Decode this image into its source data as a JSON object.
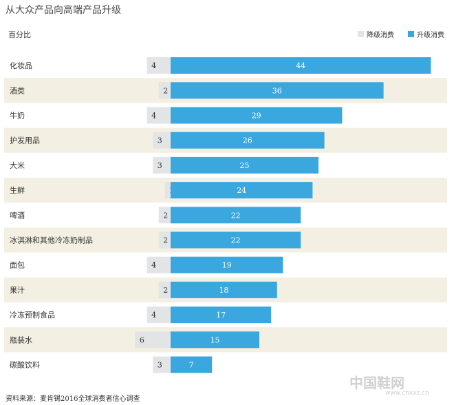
{
  "chart_data": {
    "type": "bar",
    "orientation": "horizontal",
    "stacked": "diverging",
    "title": "从大众产品向高端产品升级",
    "ylabel": "百分比",
    "categories": [
      "化妆品",
      "酒类",
      "牛奶",
      "护发用品",
      "大米",
      "生鲜",
      "啤酒",
      "冰淇淋和其他冷冻奶制品",
      "面包",
      "果汁",
      "冷冻预制食品",
      "瓶装水",
      "碳酸饮料"
    ],
    "series": [
      {
        "name": "降级消费",
        "values": [
          4,
          2,
          4,
          3,
          3,
          1,
          2,
          2,
          4,
          2,
          4,
          6,
          3
        ],
        "color": "#e3e4e6"
      },
      {
        "name": "升级消费",
        "values": [
          44,
          36,
          29,
          26,
          25,
          24,
          22,
          22,
          19,
          18,
          17,
          15,
          7
        ],
        "color": "#3aa7de"
      }
    ],
    "legend_position": "top-right",
    "row_band_color": "#f3efe2",
    "source": "资料来源：麦肯锡2016全球消费者信心调查"
  },
  "watermark": {
    "text": "中国鞋网",
    "sub": "www.cnxxz.cn"
  }
}
